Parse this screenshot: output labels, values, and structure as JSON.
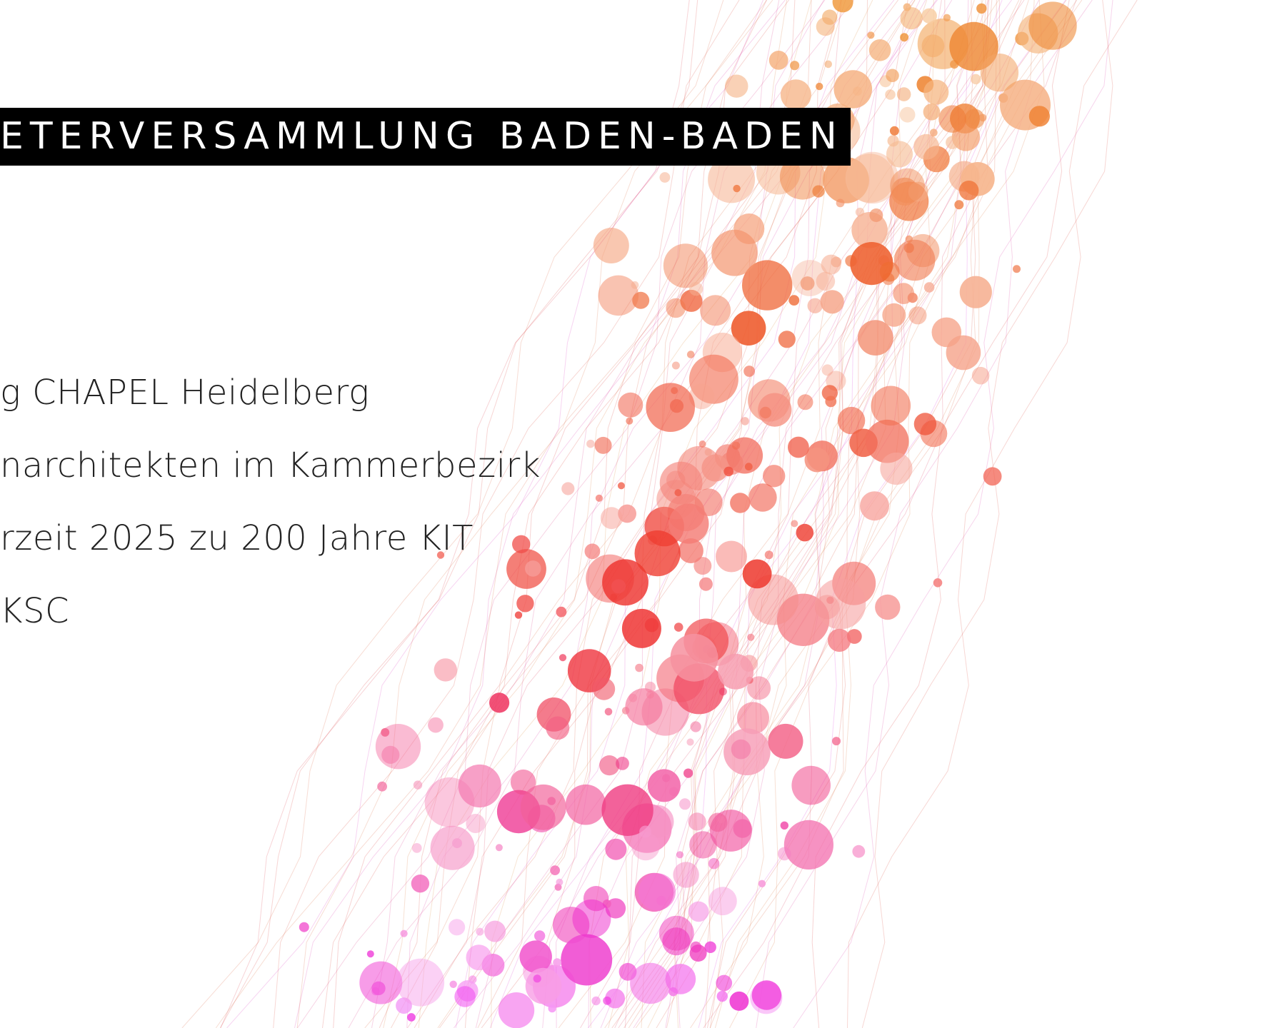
{
  "header": {
    "title": "ETERVERSAMMLUNG BADEN-BADEN"
  },
  "agenda": {
    "items": [
      "g CHAPEL Heidelberg",
      "narchitekten im Kammerbezirk",
      "rzeit 2025 zu 200 Jahre KIT",
      "KSC"
    ]
  }
}
